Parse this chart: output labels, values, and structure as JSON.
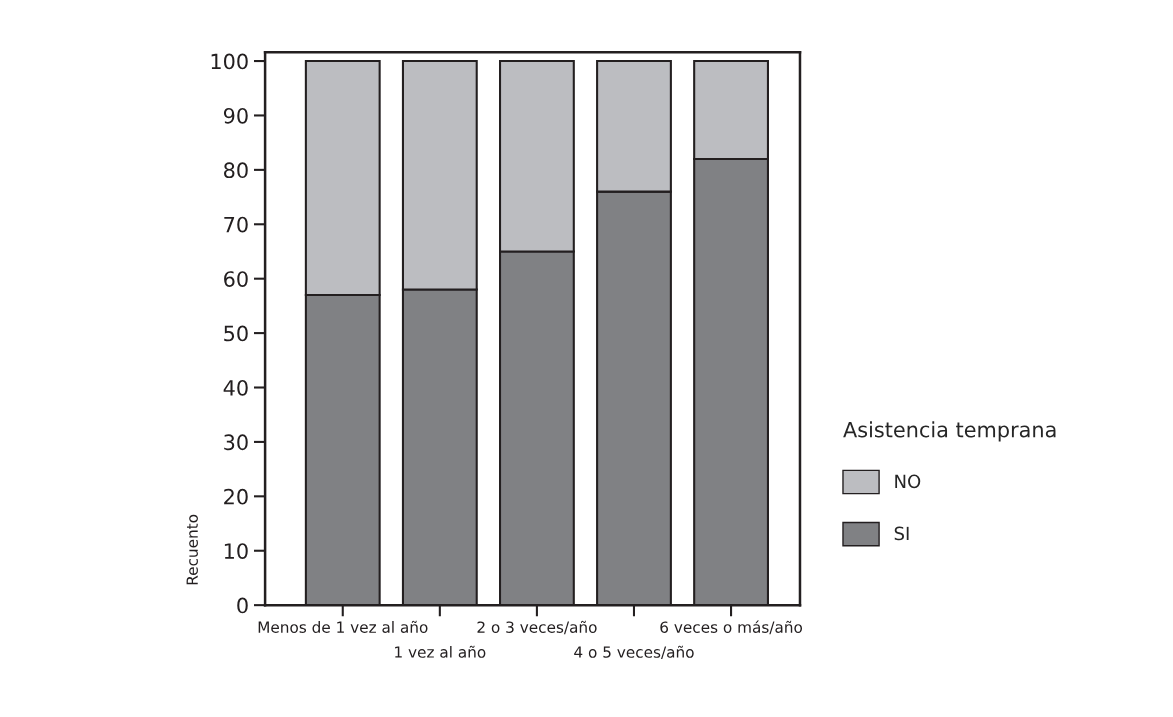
{
  "chart_data": {
    "type": "bar",
    "stacked": true,
    "ylabel": "Recuento",
    "legend_title": "Asistencia temprana",
    "legend": "right",
    "categories": [
      "Menos de 1 vez al año",
      "1 vez al año",
      "2 o 3 veces/año",
      "4 o 5 veces/año",
      "6 veces o más/año"
    ],
    "series": [
      {
        "name": "SI",
        "color": "#808184",
        "values": [
          57,
          58,
          65,
          76,
          82
        ]
      },
      {
        "name": "NO",
        "color": "#bcbdc1",
        "values": [
          43,
          42,
          35,
          24,
          18
        ]
      }
    ],
    "ylim": [
      0,
      101.6
    ],
    "yticks": [
      0,
      10,
      20,
      30,
      40,
      50,
      60,
      70,
      80,
      90,
      100
    ],
    "grid": false
  }
}
